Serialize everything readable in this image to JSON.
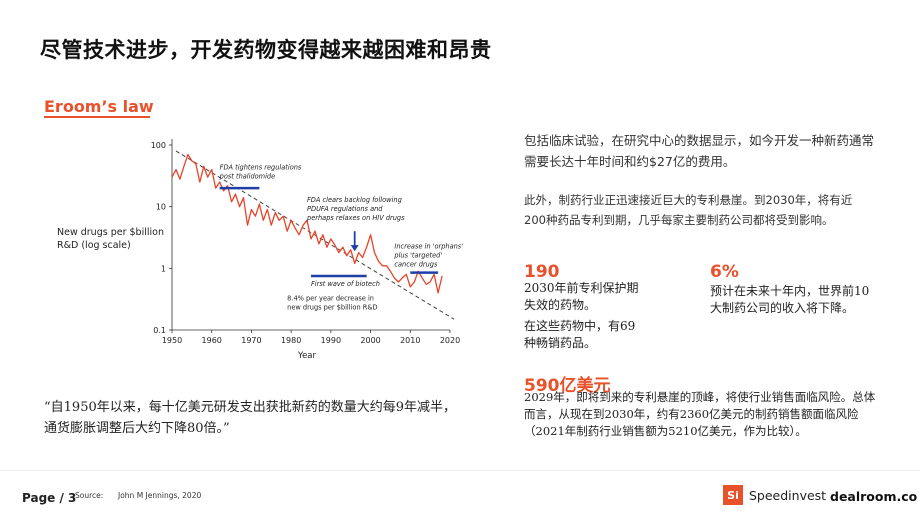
{
  "header": {
    "title": "尽管技术进步，开发药物变得越来越困难和昂贵",
    "subtitle": "Eroom’s law"
  },
  "chart_data": {
    "type": "line",
    "ylabel": "New drugs per $billion R&D (log scale)",
    "ylabel_lines": [
      "New drugs per $billion",
      "R&D (log scale)"
    ],
    "xlabel": "Year",
    "xlim": [
      1950,
      2020
    ],
    "ylim": [
      0.1,
      100
    ],
    "y_scale": "log",
    "x_ticks": [
      "1950",
      "1960",
      "1970",
      "1980",
      "1990",
      "2000",
      "2010",
      "2020"
    ],
    "y_ticks": [
      "100",
      "10",
      "1",
      "0.1"
    ],
    "series": [
      {
        "color": "#e8432a",
        "x": [
          1950,
          1951,
          1952,
          1953,
          1954,
          1955,
          1956,
          1957,
          1958,
          1959,
          1960,
          1961,
          1962,
          1963,
          1964,
          1965,
          1966,
          1967,
          1968,
          1969,
          1970,
          1971,
          1972,
          1973,
          1974,
          1975,
          1976,
          1977,
          1978,
          1979,
          1980,
          1981,
          1982,
          1983,
          1984,
          1985,
          1986,
          1987,
          1988,
          1989,
          1990,
          1991,
          1992,
          1993,
          1994,
          1995,
          1996,
          1997,
          1998,
          1999,
          2000,
          2001,
          2002,
          2003,
          2004,
          2005,
          2006,
          2007,
          2008,
          2009,
          2010,
          2011,
          2012,
          2013,
          2014,
          2015,
          2016,
          2017,
          2018
        ],
        "y": [
          30,
          40,
          28,
          45,
          70,
          55,
          50,
          25,
          45,
          30,
          40,
          20,
          25,
          18,
          22,
          12,
          16,
          10,
          14,
          5,
          9,
          7,
          11,
          6,
          9,
          5,
          8,
          6,
          7,
          4,
          6,
          4.5,
          3.5,
          5,
          6,
          3,
          4,
          2.5,
          3.5,
          2.2,
          3,
          2.4,
          1.8,
          2.2,
          1.6,
          2,
          1.2,
          1.8,
          1.5,
          2.2,
          3.5,
          1.8,
          1.3,
          1.1,
          1.1,
          0.9,
          0.7,
          0.6,
          0.7,
          0.8,
          0.5,
          0.6,
          0.9,
          0.7,
          0.55,
          0.6,
          0.8,
          0.4,
          0.75
        ]
      },
      {
        "name": "trend",
        "color": "#444444",
        "x": [
          1951,
          2021
        ],
        "y": [
          80,
          0.15
        ]
      }
    ],
    "annotations": [
      {
        "lines": [
          "FDA tightens regulations",
          "post thalidomide"
        ],
        "x": 1962,
        "y": 40,
        "bar": [
          1962,
          1972,
          20
        ],
        "bar_color": "#1f3fa8"
      },
      {
        "lines": [
          "FDA clears backlog following",
          "PDUFA regulations and",
          "perhaps relaxes on HIV drugs"
        ],
        "x": 1984,
        "y": 12,
        "arrow": [
          1996,
          4,
          1.9
        ],
        "arrow_color": "#1f3fa8"
      },
      {
        "lines": [
          "Increase in 'orphans'",
          "plus 'targeted'",
          "cancer drugs"
        ],
        "x": 2006,
        "y": 2.1,
        "bar": [
          2010,
          2017,
          0.85
        ],
        "bar_color": "#1f3fa8"
      },
      {
        "lines": [
          "First wave of biotech"
        ],
        "x": 1985,
        "y": 0.52,
        "bar": [
          1985,
          1999,
          0.75
        ],
        "bar_color": "#1f3fa8",
        "below": true
      },
      {
        "lines": [
          "8.4% per year decrease in",
          "new drugs per $billion R&D"
        ],
        "x": 1979,
        "y": 0.3
      }
    ]
  },
  "quote": "“自1950年以来，每十亿美元研发支出获批新药的数量大约每9年减半，通货膨胀调整后大约下降80倍。”",
  "paragraphs": {
    "p1": "包括临床试验，在研究中心的数据显示，如今开发一种新药通常需要长达十年时间和约$27亿的费用。",
    "p2": "此外，制药行业正迅速接近巨大的专利悬崖。到2030年，将有近200种药品专利到期，几乎每家主要制药公司都将受到影响。"
  },
  "stats": {
    "s1_num": "190",
    "s1_desc": "2030年前专利保护期失效的药物。",
    "s1_extra": "在这些药物中，有69种畅销药品。",
    "s2_num": "6%",
    "s2_desc": "预计在未来十年内，世界前10大制药公司的收入将下降。",
    "s3_num": "590亿美元",
    "s3_desc": "2029年，即将到来的专利悬崖的顶峰，将使行业销售面临风险。总体而言，从现在到2030年，约有2360亿美元的制药销售额面临风险（2021年制药行业销售额为5210亿美元，作为比较）。"
  },
  "footer": {
    "page": "Page / 3",
    "source_label": "Source:",
    "source": "John M Jennings, 2020",
    "logo1_mark": "Si",
    "logo1_name": "Speedinvest",
    "logo2": "dealroom.co"
  },
  "colors": {
    "accent": "#e8512a",
    "annotation_blue": "#1f3fa8"
  }
}
